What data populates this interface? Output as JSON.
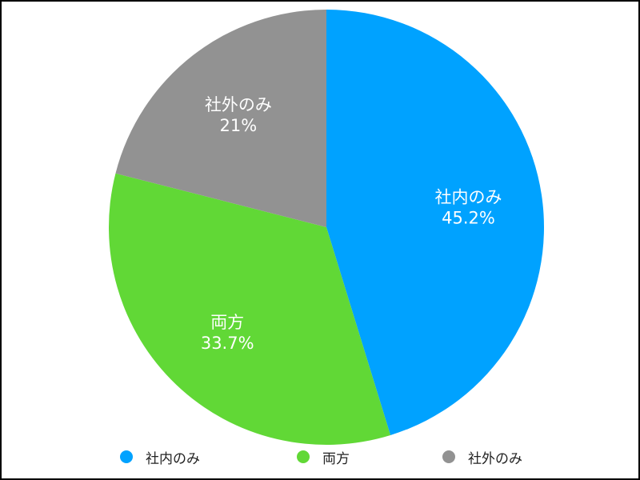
{
  "chart_data": {
    "type": "pie",
    "title": "",
    "slices": [
      {
        "label": "社内のみ",
        "value": 45.2,
        "value_label": "45.2%",
        "color": "#00a2ff"
      },
      {
        "label": "両方",
        "value": 33.7,
        "value_label": "33.7%",
        "color": "#61d836"
      },
      {
        "label": "社外のみ",
        "value": 21,
        "value_label": "21%",
        "color": "#929292"
      }
    ],
    "start_angle": "12 o'clock",
    "direction": "clockwise",
    "legend_position": "bottom",
    "border": true
  }
}
